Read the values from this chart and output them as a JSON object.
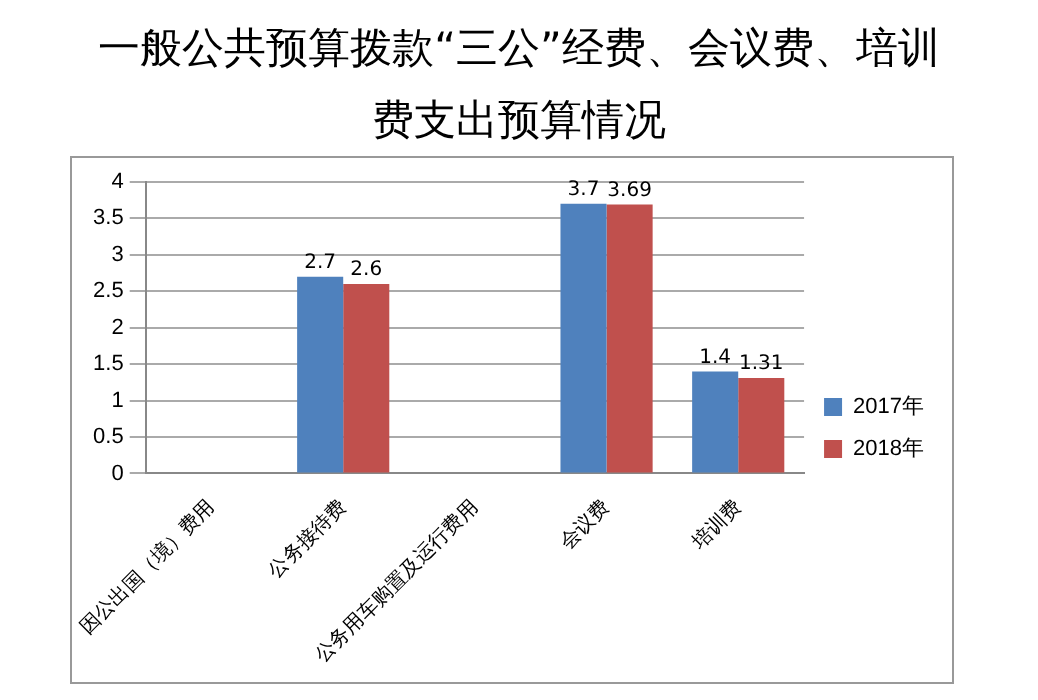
{
  "chart_data": {
    "type": "bar",
    "title": "一般公共预算拨款“三公”经费、会议费、培训费支出预算情况",
    "categories": [
      "因公出国（境）费用",
      "公务接待费",
      "公务用车购置及运行费用",
      "会议费",
      "培训费"
    ],
    "series": [
      {
        "name": "2017年",
        "color": "#4f81bd",
        "values": [
          null,
          2.7,
          null,
          3.7,
          1.4
        ]
      },
      {
        "name": "2018年",
        "color": "#c0504d",
        "values": [
          null,
          2.6,
          null,
          3.69,
          1.31
        ]
      }
    ],
    "ylim": [
      0,
      4
    ],
    "yticks": [
      0,
      0.5,
      1,
      1.5,
      2,
      2.5,
      3,
      3.5,
      4
    ],
    "grid": "y",
    "legend": "right",
    "data_labels": true
  }
}
